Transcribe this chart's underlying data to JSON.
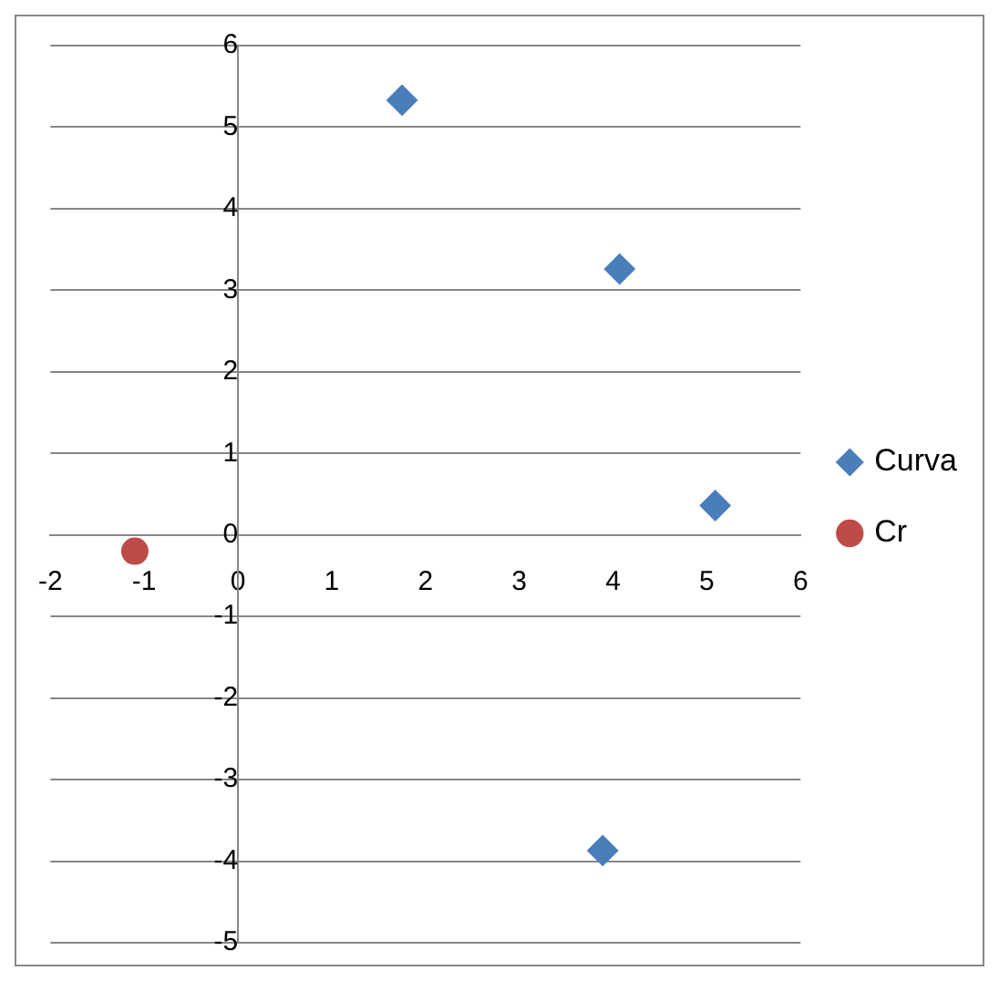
{
  "chart_data": {
    "type": "scatter",
    "xlim": [
      -2,
      6
    ],
    "xticks": [
      -2,
      -1,
      0,
      1,
      2,
      3,
      4,
      5,
      6
    ],
    "ylim": [
      -5,
      6
    ],
    "yticks": [
      -5,
      -4,
      -3,
      -2,
      -1,
      0,
      1,
      2,
      3,
      4,
      5,
      6
    ],
    "grid": "y",
    "legend": "right",
    "series": [
      {
        "name": "Curva",
        "color": "#4a7ebb",
        "marker": "diamond",
        "x": [
          1.75,
          4.07,
          5.09,
          3.89
        ],
        "values": [
          5.33,
          3.26,
          0.36,
          -3.87
        ]
      },
      {
        "name": "Cr",
        "color": "#be4b48",
        "marker": "circle",
        "x": [
          -1.1
        ],
        "values": [
          -0.2
        ]
      }
    ]
  }
}
